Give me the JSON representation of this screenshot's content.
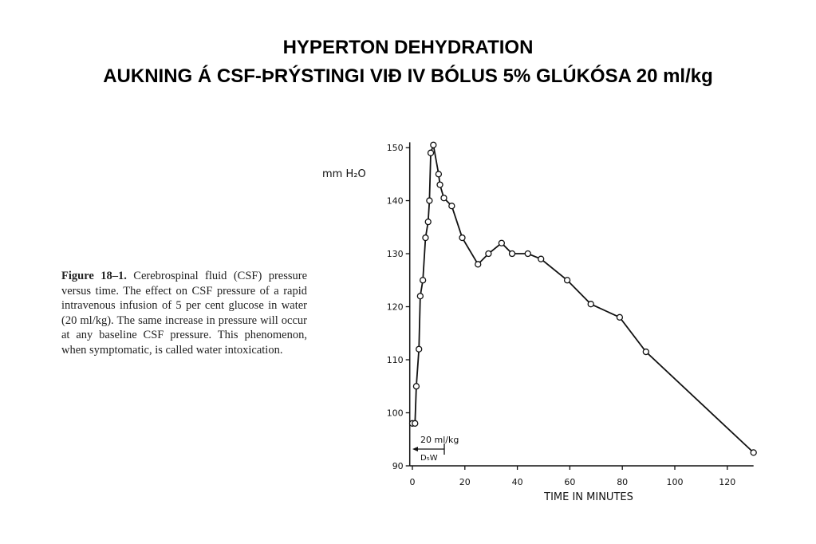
{
  "chart_data": {
    "type": "line",
    "title": "HYPERTON DEHYDRATION",
    "subtitle": "AUKNING Á CSF-ÞRÝSTINGI VIÐ IV BÓLUS 5% GLÚKÓSA 20 ml/kg",
    "caption_label": "Figure 18–1.",
    "caption": "Cerebrospinal fluid (CSF) pressure versus time. The effect on CSF pressure of a rapid intravenous infusion of 5 per cent glucose in water (20 ml/kg). The same increase in pressure will occur at any baseline CSF pressure. This phenomenon, when symptomatic, is called water intoxication.",
    "y_label": "mm H₂O",
    "x_label": "TIME IN MINUTES",
    "annotations": [
      "20 ml/kg",
      "D₅W"
    ],
    "x": [
      0,
      1,
      1.5,
      2.5,
      3,
      4,
      5,
      6,
      6.5,
      7,
      8,
      10,
      10.5,
      12,
      15,
      19,
      25,
      29,
      34,
      38,
      44,
      49,
      59,
      68,
      79,
      89,
      130
    ],
    "series": [
      {
        "color": "#111111",
        "values": [
          98,
          98,
          105,
          112,
          122,
          125,
          133,
          136,
          140,
          149,
          150.5,
          145,
          143,
          140.5,
          139,
          133,
          128,
          130,
          132,
          130,
          130,
          129,
          125,
          120.5,
          118,
          111.5,
          92.5
        ]
      }
    ],
    "xlim": [
      -1,
      130
    ],
    "ylim": [
      90,
      151
    ],
    "xticks": [
      0,
      20,
      40,
      60,
      80,
      100,
      120
    ],
    "yticks": [
      90,
      100,
      110,
      120,
      130,
      140,
      150
    ]
  }
}
